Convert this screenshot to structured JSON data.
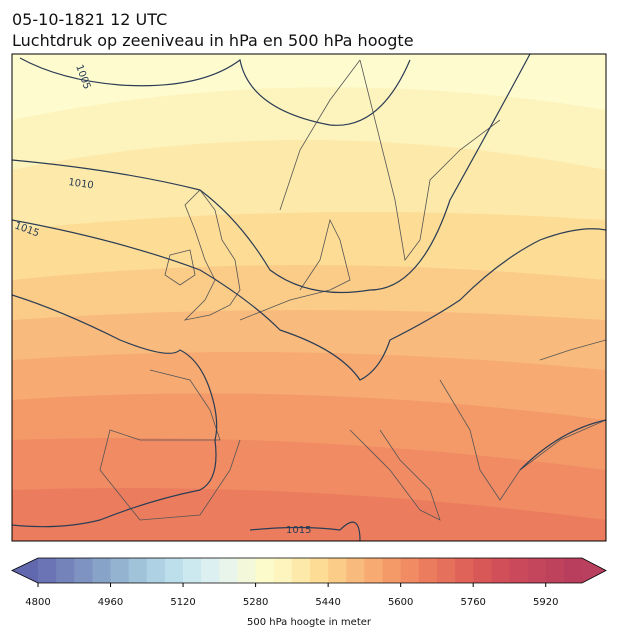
{
  "title": "05-10-1821 12 UTC",
  "subtitle": "Luchtdruk op zeeniveau in hPa en 500 hPa hoogte",
  "contour_labels": [
    "1005",
    "1010",
    "1015",
    "1015"
  ],
  "colorbar": {
    "label": "500 hPa hoogte in meter",
    "clim": [
      4800,
      6000
    ],
    "cticks": [
      4800,
      4960,
      5120,
      5280,
      5440,
      5600,
      5760,
      5920
    ],
    "under_color": "#6268ad",
    "over_color": "#b9405e",
    "colormap": [
      "#6b74b4",
      "#7484ba",
      "#7e93c1",
      "#88a3c8",
      "#93b3d0",
      "#a0c3da",
      "#aed2e3",
      "#bddfeb",
      "#cde9f0",
      "#ddf0f1",
      "#e9f4ea",
      "#f3f8da",
      "#fbfbcb",
      "#fdf5bd",
      "#fde9a9",
      "#fddc96",
      "#fbcc88",
      "#f9bb7d",
      "#f7aa72",
      "#f49a69",
      "#f08b63",
      "#eb7d5e",
      "#e5705b",
      "#df6359",
      "#d85858",
      "#d14f59",
      "#ca4a5b",
      "#c4465c",
      "#bf425d",
      "#b93e5e"
    ]
  }
}
